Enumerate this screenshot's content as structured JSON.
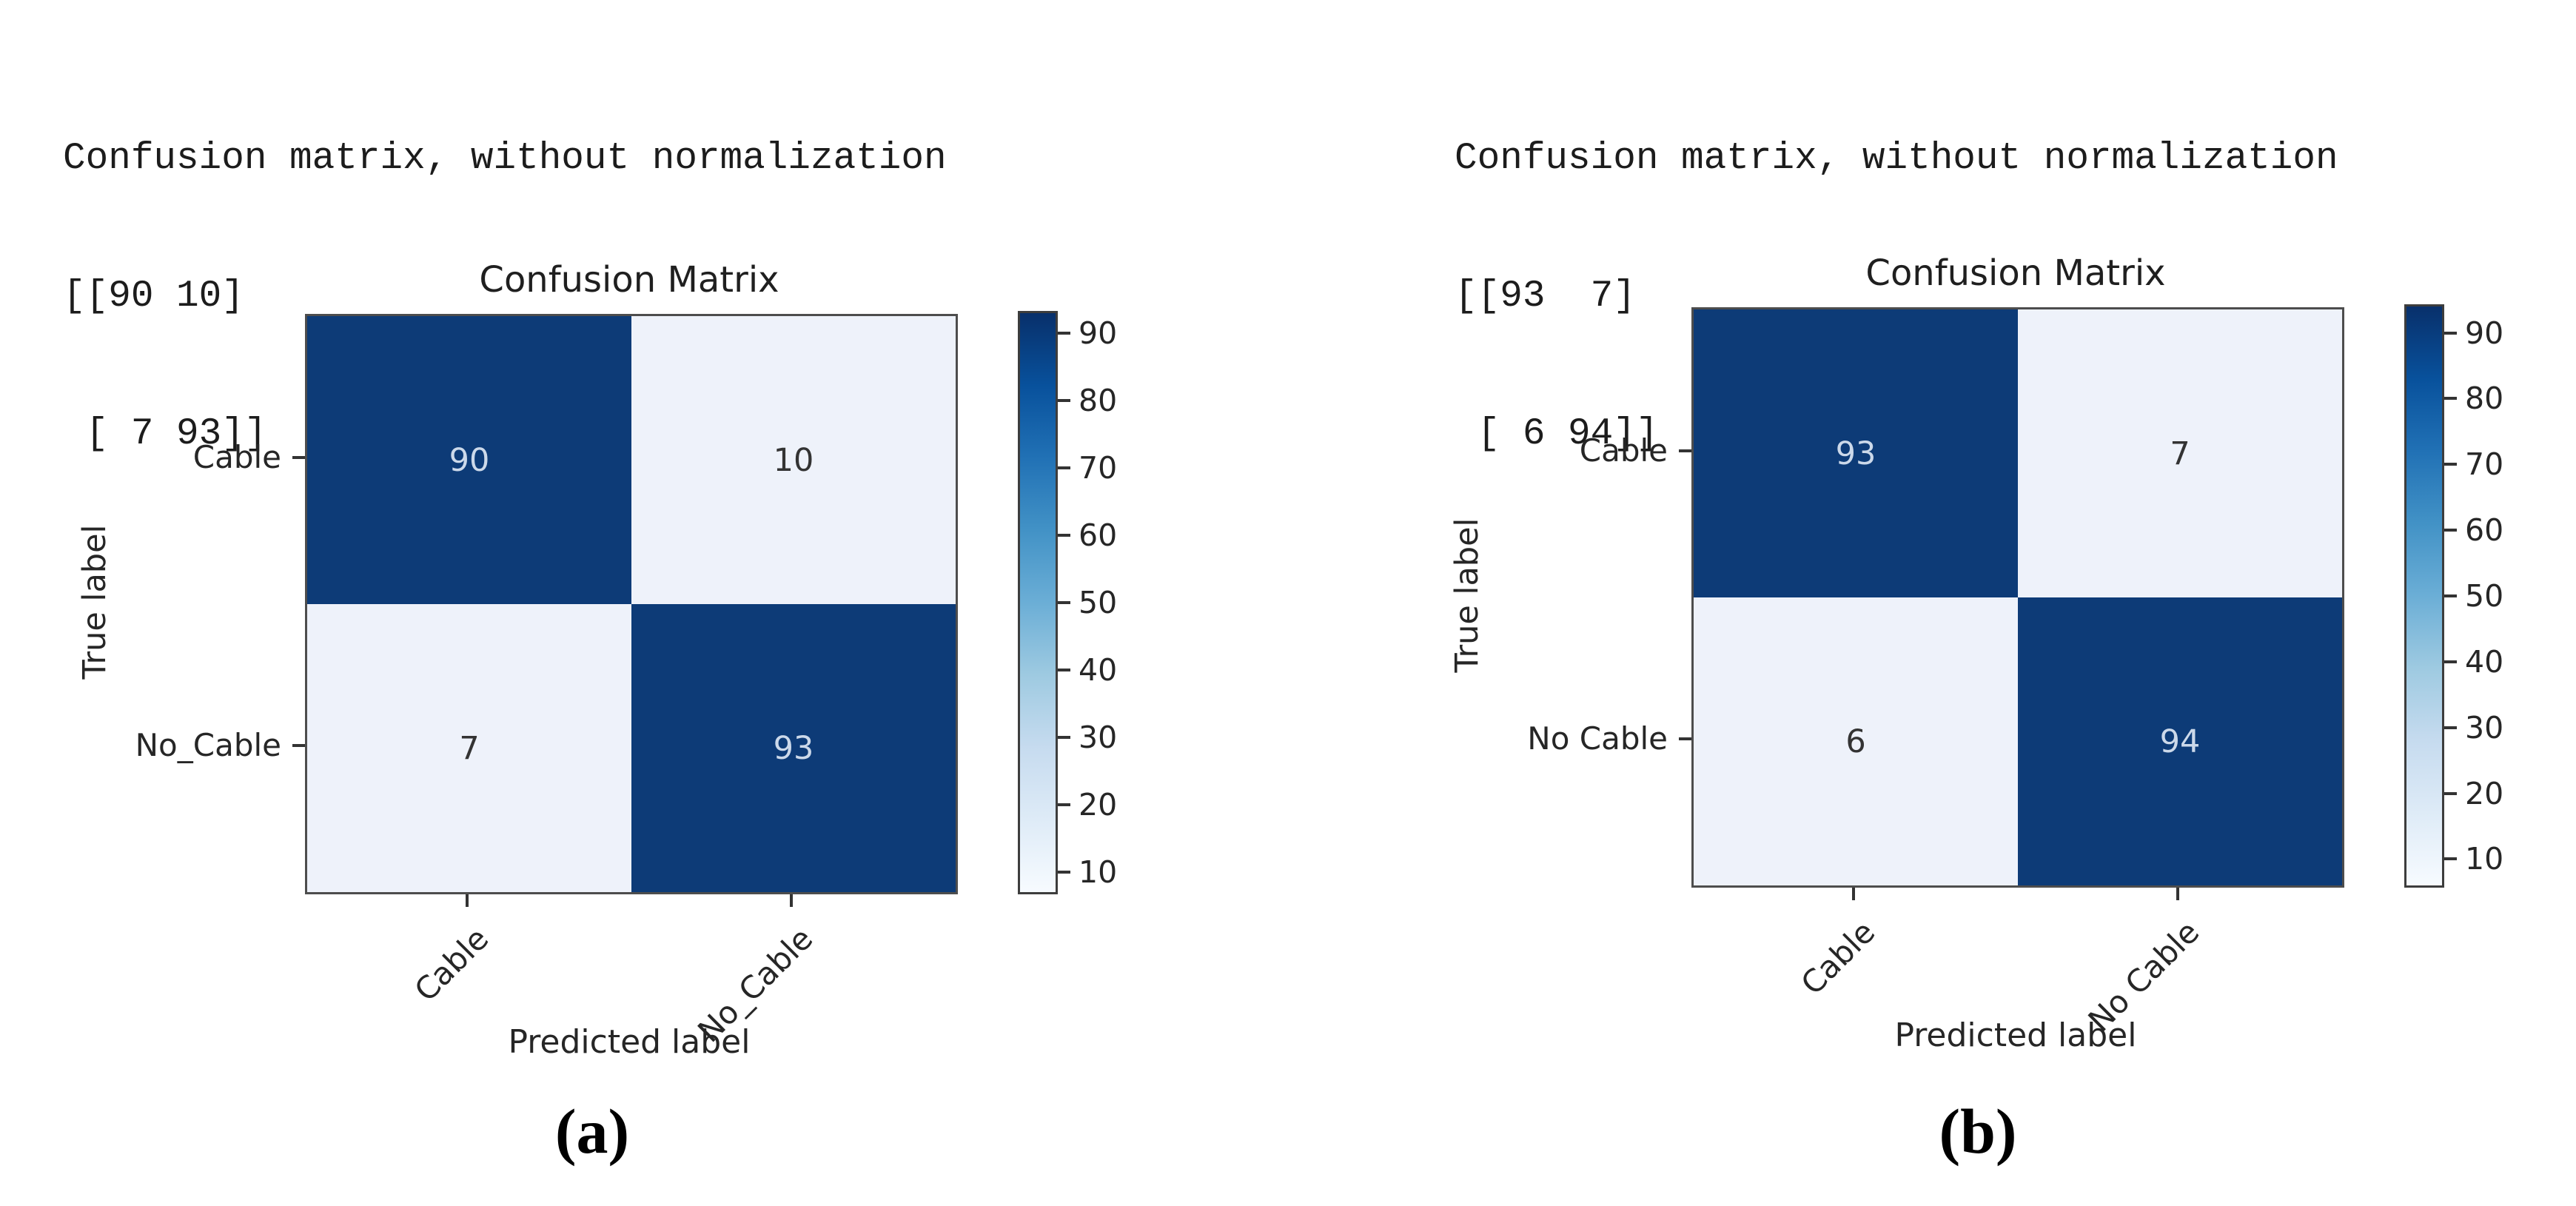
{
  "colors": {
    "background": "#ffffff",
    "cell_dark": "#0d3b77",
    "cell_light": "#eef2fa",
    "text_on_dark": "#ccd9ea",
    "text_on_light": "#333333",
    "axis_line": "#4d4d4d",
    "tick_mark": "#333333",
    "label_text": "#262626",
    "cmap_stops_dark_to_light": [
      "#08306b",
      "#08519c",
      "#2171b5",
      "#4292c6",
      "#6baed6",
      "#9ecae1",
      "#c6dbef",
      "#deebf7",
      "#f7fbff"
    ]
  },
  "chart_data": [
    {
      "type": "heatmap",
      "panel": "a",
      "console_lines": [
        "Confusion matrix, without normalization",
        "[[90 10]",
        " [ 7 93]]"
      ],
      "title": "Confusion Matrix",
      "xlabel": "Predicted label",
      "ylabel": "True label",
      "x_categories": [
        "Cable",
        "No_Cable"
      ],
      "y_categories": [
        "Cable",
        "No_Cable"
      ],
      "matrix": [
        [
          90,
          10
        ],
        [
          7,
          93
        ]
      ],
      "colorbar_ticks": [
        90,
        80,
        70,
        60,
        50,
        40,
        30,
        20,
        10
      ],
      "vmin": 7,
      "vmax": 93,
      "colormap": "Blues",
      "legend_position": "right-colorbar",
      "caption": "(a)"
    },
    {
      "type": "heatmap",
      "panel": "b",
      "console_lines": [
        "Confusion matrix, without normalization",
        "[[93  7]",
        " [ 6 94]]"
      ],
      "title": "Confusion Matrix",
      "xlabel": "Predicted label",
      "ylabel": "True label",
      "x_categories": [
        "Cable",
        "No Cable"
      ],
      "y_categories": [
        "Cable",
        "No Cable"
      ],
      "matrix": [
        [
          93,
          7
        ],
        [
          6,
          94
        ]
      ],
      "colorbar_ticks": [
        90,
        80,
        70,
        60,
        50,
        40,
        30,
        20,
        10
      ],
      "vmin": 6,
      "vmax": 94,
      "colormap": "Blues",
      "legend_position": "right-colorbar",
      "caption": "(b)"
    }
  ]
}
